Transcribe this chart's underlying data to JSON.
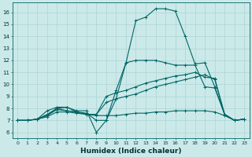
{
  "xlabel": "Humidex (Indice chaleur)",
  "bg_color": "#cce9e9",
  "grid_color": "#aad4d4",
  "line_color": "#006666",
  "xlim": [
    -0.5,
    23.5
  ],
  "ylim": [
    5.5,
    16.8
  ],
  "yticks": [
    6,
    7,
    8,
    9,
    10,
    11,
    12,
    13,
    14,
    15,
    16
  ],
  "xticks": [
    0,
    1,
    2,
    3,
    4,
    5,
    6,
    7,
    8,
    9,
    10,
    11,
    12,
    13,
    14,
    15,
    16,
    17,
    18,
    19,
    20,
    21,
    22,
    23
  ],
  "series": [
    {
      "x": [
        0,
        1,
        2,
        3,
        4,
        5,
        6,
        7,
        8,
        9,
        10,
        11,
        12,
        13,
        14,
        15,
        16,
        17,
        18,
        19,
        20,
        21,
        22,
        23
      ],
      "y": [
        7.0,
        7.0,
        7.1,
        7.5,
        8.0,
        8.1,
        7.7,
        7.6,
        7.0,
        7.0,
        8.8,
        11.8,
        15.3,
        15.6,
        16.3,
        16.3,
        16.1,
        14.0,
        11.7,
        11.8,
        9.8,
        7.5,
        7.0,
        7.1
      ]
    },
    {
      "x": [
        0,
        1,
        2,
        3,
        4,
        5,
        6,
        7,
        8,
        9,
        10,
        11,
        12,
        13,
        14,
        15,
        16,
        17,
        18,
        19,
        20,
        21,
        22,
        23
      ],
      "y": [
        7.0,
        7.0,
        7.1,
        7.8,
        8.1,
        8.1,
        7.8,
        7.8,
        6.0,
        7.0,
        9.5,
        11.8,
        12.0,
        12.0,
        12.0,
        11.8,
        11.6,
        11.6,
        11.6,
        9.8,
        9.7,
        7.5,
        7.0,
        7.1
      ]
    },
    {
      "x": [
        0,
        1,
        2,
        3,
        4,
        5,
        6,
        7,
        8,
        9,
        10,
        11,
        12,
        13,
        14,
        15,
        16,
        17,
        18,
        19,
        20,
        21,
        22,
        23
      ],
      "y": [
        7.0,
        7.0,
        7.1,
        7.4,
        8.0,
        7.8,
        7.7,
        7.5,
        7.5,
        9.0,
        9.3,
        9.5,
        9.8,
        10.1,
        10.3,
        10.5,
        10.7,
        10.8,
        11.0,
        10.6,
        10.5,
        7.5,
        7.0,
        7.1
      ]
    },
    {
      "x": [
        0,
        1,
        2,
        3,
        4,
        5,
        6,
        7,
        8,
        9,
        10,
        11,
        12,
        13,
        14,
        15,
        16,
        17,
        18,
        19,
        20,
        21,
        22,
        23
      ],
      "y": [
        7.0,
        7.0,
        7.1,
        7.4,
        7.9,
        7.8,
        7.7,
        7.5,
        7.5,
        8.5,
        8.8,
        9.0,
        9.2,
        9.5,
        9.8,
        10.0,
        10.2,
        10.4,
        10.6,
        10.8,
        10.4,
        7.5,
        7.0,
        7.1
      ]
    },
    {
      "x": [
        0,
        1,
        2,
        3,
        4,
        5,
        6,
        7,
        8,
        9,
        10,
        11,
        12,
        13,
        14,
        15,
        16,
        17,
        18,
        19,
        20,
        21,
        22,
        23
      ],
      "y": [
        7.0,
        7.0,
        7.1,
        7.3,
        7.7,
        7.7,
        7.6,
        7.5,
        7.4,
        7.4,
        7.4,
        7.5,
        7.6,
        7.6,
        7.7,
        7.7,
        7.8,
        7.8,
        7.8,
        7.8,
        7.7,
        7.4,
        7.0,
        7.1
      ]
    }
  ]
}
